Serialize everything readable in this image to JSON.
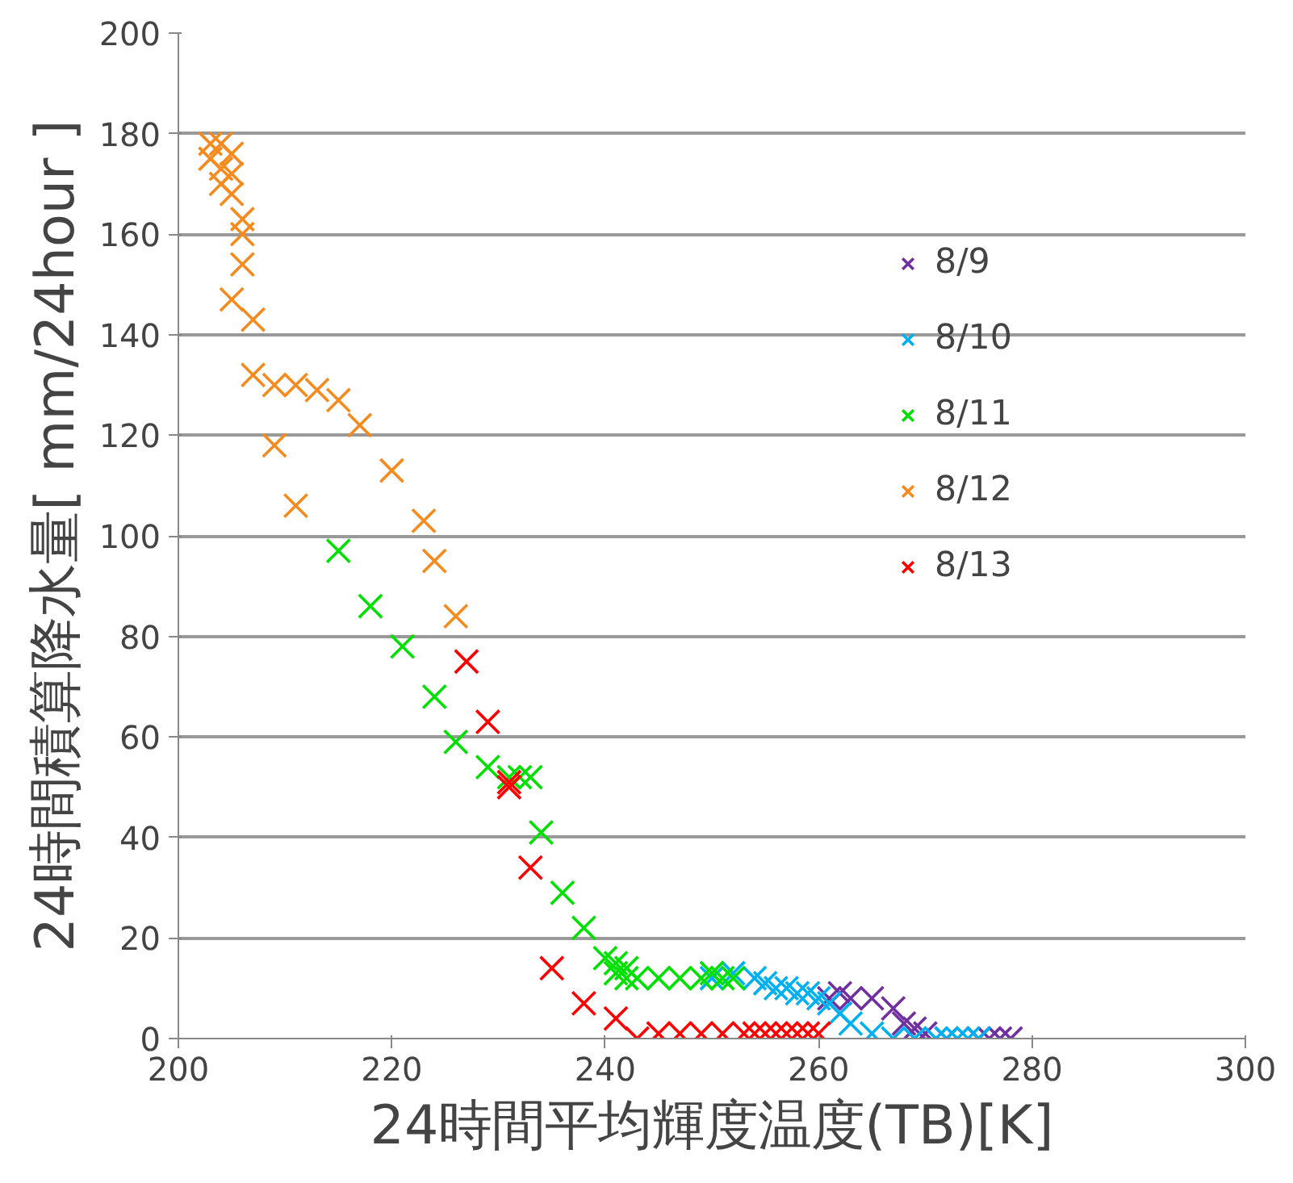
{
  "chart_data": {
    "type": "scatter",
    "xlabel": "24時間平均輝度温度(TB)[K]",
    "ylabel": "24時間積算降水量[ mm/24hour ]",
    "xlim": [
      200,
      300
    ],
    "ylim": [
      0,
      200
    ],
    "xticks": [
      200,
      220,
      240,
      260,
      280,
      300
    ],
    "yticks": [
      0,
      20,
      40,
      60,
      80,
      100,
      120,
      140,
      160,
      180,
      200
    ],
    "grid": "y",
    "legend": "right",
    "marker": "cross",
    "series": [
      {
        "name": "8/9",
        "color": "#7030a0",
        "x": [
          261,
          262,
          263,
          265,
          267,
          268,
          269,
          270,
          272,
          275,
          276,
          277,
          278
        ],
        "values": [
          8,
          9,
          8,
          8,
          6,
          3,
          2,
          1,
          0,
          0,
          0,
          0,
          0
        ]
      },
      {
        "name": "8/10",
        "color": "#00b0f0",
        "x": [
          250,
          252,
          254,
          255,
          256,
          257,
          258,
          259,
          260,
          261,
          262,
          263,
          265,
          267,
          269,
          271,
          272,
          273,
          274,
          275
        ],
        "values": [
          12,
          13,
          12,
          11,
          10,
          10,
          9,
          9,
          8,
          7,
          5,
          3,
          1,
          0,
          0,
          0,
          0,
          0,
          0,
          0
        ]
      },
      {
        "name": "8/11",
        "color": "#00e000",
        "x": [
          215,
          218,
          221,
          224,
          226,
          229,
          231,
          232,
          233,
          234,
          236,
          238,
          240,
          241,
          241,
          242,
          242,
          243,
          245,
          247,
          249,
          250,
          251,
          252
        ],
        "values": [
          97,
          86,
          78,
          68,
          59,
          54,
          52,
          52,
          52,
          41,
          29,
          22,
          16,
          15,
          13,
          14,
          12,
          12,
          12,
          12,
          12,
          13,
          12,
          12
        ]
      },
      {
        "name": "8/12",
        "color": "#f58a1f",
        "x": [
          203,
          203,
          204,
          204,
          204,
          205,
          205,
          205,
          206,
          206,
          206,
          205,
          207,
          207,
          209,
          211,
          213,
          215,
          217,
          220,
          209,
          211,
          223,
          224,
          226
        ],
        "values": [
          175,
          178,
          178,
          173,
          170,
          176,
          172,
          168,
          163,
          160,
          154,
          147,
          143,
          132,
          130,
          130,
          129,
          127,
          122,
          113,
          118,
          106,
          103,
          95,
          84
        ]
      },
      {
        "name": "8/13",
        "color": "#ff0000",
        "x": [
          227,
          229,
          231,
          231,
          233,
          235,
          238,
          241,
          243,
          245,
          247,
          249,
          251,
          253,
          254,
          255,
          256,
          257,
          258,
          259,
          260
        ],
        "values": [
          75,
          63,
          51,
          50,
          34,
          14,
          7,
          4,
          0,
          1,
          1,
          1,
          1,
          1,
          1,
          1,
          1,
          1,
          1,
          1,
          1
        ]
      }
    ]
  }
}
